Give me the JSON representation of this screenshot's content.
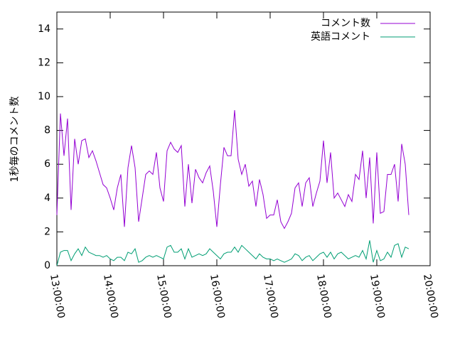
{
  "chart_data": {
    "type": "line",
    "title": "",
    "xlabel": "",
    "ylabel": "1秒毎のコメント数",
    "xlim": [
      "13:00:00",
      "20:00:00"
    ],
    "ylim": [
      0,
      15
    ],
    "x_ticks": [
      "13:00:00",
      "14:00:00",
      "15:00:00",
      "16:00:00",
      "17:00:00",
      "18:00:00",
      "19:00:00",
      "20:00:00"
    ],
    "y_ticks": [
      0,
      2,
      4,
      6,
      8,
      10,
      12,
      14
    ],
    "grid": false,
    "legend_position": "top-right",
    "series": [
      {
        "name": "コメント数",
        "color": "#9400d3",
        "points": [
          [
            "13:00:00",
            3.0
          ],
          [
            "13:04:00",
            9.0
          ],
          [
            "13:08:00",
            6.5
          ],
          [
            "13:12:00",
            8.7
          ],
          [
            "13:16:00",
            3.3
          ],
          [
            "13:20:00",
            7.5
          ],
          [
            "13:24:00",
            6.0
          ],
          [
            "13:28:00",
            7.4
          ],
          [
            "13:32:00",
            7.5
          ],
          [
            "13:36:00",
            6.4
          ],
          [
            "13:40:00",
            6.8
          ],
          [
            "13:44:00",
            6.2
          ],
          [
            "13:48:00",
            5.5
          ],
          [
            "13:52:00",
            4.8
          ],
          [
            "13:56:00",
            4.6
          ],
          [
            "14:00:00",
            4.0
          ],
          [
            "14:04:00",
            3.3
          ],
          [
            "14:08:00",
            4.6
          ],
          [
            "14:12:00",
            5.4
          ],
          [
            "14:16:00",
            2.3
          ],
          [
            "14:20:00",
            5.8
          ],
          [
            "14:24:00",
            7.1
          ],
          [
            "14:28:00",
            5.8
          ],
          [
            "14:32:00",
            2.6
          ],
          [
            "14:36:00",
            4.0
          ],
          [
            "14:40:00",
            5.4
          ],
          [
            "14:44:00",
            5.6
          ],
          [
            "14:48:00",
            5.4
          ],
          [
            "14:52:00",
            6.7
          ],
          [
            "14:56:00",
            4.6
          ],
          [
            "15:00:00",
            3.8
          ],
          [
            "15:04:00",
            6.8
          ],
          [
            "15:08:00",
            7.3
          ],
          [
            "15:12:00",
            6.9
          ],
          [
            "15:16:00",
            6.7
          ],
          [
            "15:20:00",
            7.1
          ],
          [
            "15:24:00",
            3.5
          ],
          [
            "15:28:00",
            6.0
          ],
          [
            "15:32:00",
            3.7
          ],
          [
            "15:36:00",
            5.7
          ],
          [
            "15:40:00",
            5.2
          ],
          [
            "15:44:00",
            4.9
          ],
          [
            "15:48:00",
            5.5
          ],
          [
            "15:52:00",
            5.9
          ],
          [
            "15:56:00",
            4.4
          ],
          [
            "16:00:00",
            2.3
          ],
          [
            "16:04:00",
            4.8
          ],
          [
            "16:08:00",
            7.0
          ],
          [
            "16:12:00",
            6.5
          ],
          [
            "16:16:00",
            6.5
          ],
          [
            "16:20:00",
            9.2
          ],
          [
            "16:24:00",
            6.3
          ],
          [
            "16:28:00",
            5.4
          ],
          [
            "16:32:00",
            6.0
          ],
          [
            "16:36:00",
            4.7
          ],
          [
            "16:40:00",
            5.0
          ],
          [
            "16:44:00",
            3.5
          ],
          [
            "16:48:00",
            5.1
          ],
          [
            "16:52:00",
            4.2
          ],
          [
            "16:56:00",
            2.8
          ],
          [
            "17:00:00",
            3.0
          ],
          [
            "17:04:00",
            3.0
          ],
          [
            "17:08:00",
            3.9
          ],
          [
            "17:12:00",
            2.6
          ],
          [
            "17:16:00",
            2.2
          ],
          [
            "17:20:00",
            2.6
          ],
          [
            "17:24:00",
            3.1
          ],
          [
            "17:28:00",
            4.6
          ],
          [
            "17:32:00",
            4.9
          ],
          [
            "17:36:00",
            3.5
          ],
          [
            "17:40:00",
            4.9
          ],
          [
            "17:44:00",
            5.2
          ],
          [
            "17:48:00",
            3.5
          ],
          [
            "17:52:00",
            4.3
          ],
          [
            "17:56:00",
            5.0
          ],
          [
            "18:00:00",
            7.4
          ],
          [
            "18:04:00",
            4.9
          ],
          [
            "18:08:00",
            6.7
          ],
          [
            "18:12:00",
            4.0
          ],
          [
            "18:16:00",
            4.3
          ],
          [
            "18:20:00",
            3.9
          ],
          [
            "18:24:00",
            3.5
          ],
          [
            "18:28:00",
            4.2
          ],
          [
            "18:32:00",
            3.8
          ],
          [
            "18:36:00",
            5.4
          ],
          [
            "18:40:00",
            5.1
          ],
          [
            "18:44:00",
            6.8
          ],
          [
            "18:48:00",
            4.0
          ],
          [
            "18:52:00",
            6.4
          ],
          [
            "18:56:00",
            2.5
          ],
          [
            "19:00:00",
            6.7
          ],
          [
            "19:04:00",
            3.1
          ],
          [
            "19:08:00",
            3.2
          ],
          [
            "19:12:00",
            5.4
          ],
          [
            "19:16:00",
            5.4
          ],
          [
            "19:20:00",
            6.0
          ],
          [
            "19:24:00",
            3.8
          ],
          [
            "19:28:00",
            7.2
          ],
          [
            "19:32:00",
            6.0
          ],
          [
            "19:36:00",
            3.0
          ]
        ]
      },
      {
        "name": "英語コメント",
        "color": "#009e73",
        "points": [
          [
            "13:00:00",
            0.0
          ],
          [
            "13:04:00",
            0.8
          ],
          [
            "13:08:00",
            0.9
          ],
          [
            "13:12:00",
            0.9
          ],
          [
            "13:16:00",
            0.3
          ],
          [
            "13:20:00",
            0.7
          ],
          [
            "13:24:00",
            1.0
          ],
          [
            "13:28:00",
            0.6
          ],
          [
            "13:32:00",
            1.1
          ],
          [
            "13:36:00",
            0.8
          ],
          [
            "13:40:00",
            0.7
          ],
          [
            "13:44:00",
            0.6
          ],
          [
            "13:48:00",
            0.6
          ],
          [
            "13:52:00",
            0.5
          ],
          [
            "13:56:00",
            0.6
          ],
          [
            "14:00:00",
            0.4
          ],
          [
            "14:04:00",
            0.3
          ],
          [
            "14:08:00",
            0.5
          ],
          [
            "14:12:00",
            0.5
          ],
          [
            "14:16:00",
            0.3
          ],
          [
            "14:20:00",
            0.8
          ],
          [
            "14:24:00",
            0.7
          ],
          [
            "14:28:00",
            1.0
          ],
          [
            "14:32:00",
            0.2
          ],
          [
            "14:36:00",
            0.3
          ],
          [
            "14:40:00",
            0.5
          ],
          [
            "14:44:00",
            0.6
          ],
          [
            "14:48:00",
            0.5
          ],
          [
            "14:52:00",
            0.6
          ],
          [
            "14:56:00",
            0.5
          ],
          [
            "15:00:00",
            0.4
          ],
          [
            "15:04:00",
            1.1
          ],
          [
            "15:08:00",
            1.2
          ],
          [
            "15:12:00",
            0.8
          ],
          [
            "15:16:00",
            0.8
          ],
          [
            "15:20:00",
            1.0
          ],
          [
            "15:24:00",
            0.4
          ],
          [
            "15:28:00",
            1.0
          ],
          [
            "15:32:00",
            0.5
          ],
          [
            "15:36:00",
            0.6
          ],
          [
            "15:40:00",
            0.7
          ],
          [
            "15:44:00",
            0.6
          ],
          [
            "15:48:00",
            0.7
          ],
          [
            "15:52:00",
            1.0
          ],
          [
            "15:56:00",
            0.8
          ],
          [
            "16:00:00",
            0.6
          ],
          [
            "16:04:00",
            0.4
          ],
          [
            "16:08:00",
            0.7
          ],
          [
            "16:12:00",
            0.8
          ],
          [
            "16:16:00",
            0.8
          ],
          [
            "16:20:00",
            1.1
          ],
          [
            "16:24:00",
            0.8
          ],
          [
            "16:28:00",
            1.2
          ],
          [
            "16:32:00",
            1.0
          ],
          [
            "16:36:00",
            0.8
          ],
          [
            "16:40:00",
            0.6
          ],
          [
            "16:44:00",
            0.4
          ],
          [
            "16:48:00",
            0.7
          ],
          [
            "16:52:00",
            0.5
          ],
          [
            "16:56:00",
            0.4
          ],
          [
            "17:00:00",
            0.4
          ],
          [
            "17:04:00",
            0.3
          ],
          [
            "17:08:00",
            0.4
          ],
          [
            "17:12:00",
            0.3
          ],
          [
            "17:16:00",
            0.2
          ],
          [
            "17:20:00",
            0.3
          ],
          [
            "17:24:00",
            0.4
          ],
          [
            "17:28:00",
            0.7
          ],
          [
            "17:32:00",
            0.6
          ],
          [
            "17:36:00",
            0.3
          ],
          [
            "17:40:00",
            0.5
          ],
          [
            "17:44:00",
            0.6
          ],
          [
            "17:48:00",
            0.3
          ],
          [
            "17:52:00",
            0.5
          ],
          [
            "17:56:00",
            0.7
          ],
          [
            "18:00:00",
            0.8
          ],
          [
            "18:04:00",
            0.5
          ],
          [
            "18:08:00",
            0.8
          ],
          [
            "18:12:00",
            0.4
          ],
          [
            "18:16:00",
            0.7
          ],
          [
            "18:20:00",
            0.8
          ],
          [
            "18:24:00",
            0.6
          ],
          [
            "18:28:00",
            0.4
          ],
          [
            "18:32:00",
            0.5
          ],
          [
            "18:36:00",
            0.6
          ],
          [
            "18:40:00",
            0.5
          ],
          [
            "18:44:00",
            0.9
          ],
          [
            "18:48:00",
            0.4
          ],
          [
            "18:52:00",
            1.5
          ],
          [
            "18:56:00",
            0.2
          ],
          [
            "19:00:00",
            0.9
          ],
          [
            "19:04:00",
            0.3
          ],
          [
            "19:08:00",
            0.4
          ],
          [
            "19:12:00",
            0.8
          ],
          [
            "19:16:00",
            0.5
          ],
          [
            "19:20:00",
            1.2
          ],
          [
            "19:24:00",
            1.3
          ],
          [
            "19:28:00",
            0.5
          ],
          [
            "19:32:00",
            1.1
          ],
          [
            "19:36:00",
            1.0
          ]
        ]
      }
    ]
  }
}
